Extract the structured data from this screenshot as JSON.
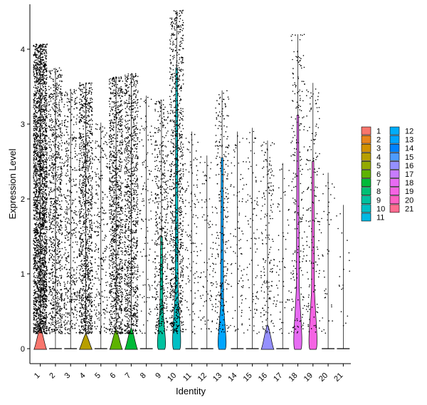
{
  "chart_data": {
    "type": "violin",
    "xlabel": "Identity",
    "ylabel": "Expression Level",
    "categories": [
      "1",
      "2",
      "3",
      "4",
      "5",
      "6",
      "7",
      "8",
      "9",
      "10",
      "11",
      "12",
      "13",
      "14",
      "15",
      "16",
      "17",
      "18",
      "19",
      "20",
      "21"
    ],
    "colors": [
      "#F8766D",
      "#E8851E",
      "#D39200",
      "#B79F00",
      "#93AA00",
      "#5EB300",
      "#00BA38",
      "#00BF74",
      "#00C19F",
      "#00BFC4",
      "#00B9E3",
      "#00ADFA",
      "#00A5FF",
      "#0082FF",
      "#4D9BFF",
      "#9590FF",
      "#C77CFF",
      "#E76BF3",
      "#F564E3",
      "#FF61C3",
      "#FF6C91"
    ],
    "ylim": [
      -0.2,
      4.6
    ],
    "yticks": [
      0,
      1,
      2,
      3,
      4
    ],
    "max_values": [
      4.07,
      3.75,
      3.47,
      3.55,
      3.02,
      3.63,
      3.68,
      3.38,
      3.32,
      4.52,
      2.9,
      2.58,
      3.45,
      2.9,
      2.95,
      2.78,
      2.48,
      4.2,
      3.55,
      2.35,
      1.92
    ],
    "dot_counts": [
      2600,
      900,
      450,
      1100,
      250,
      1100,
      1000,
      120,
      480,
      950,
      120,
      100,
      260,
      90,
      90,
      180,
      60,
      220,
      160,
      40,
      20
    ],
    "violin_peak_height": [
      0.28,
      0,
      0,
      0.2,
      0,
      0.26,
      0.28,
      0,
      0.28,
      0.52,
      0,
      0,
      0.35,
      0,
      0,
      0.32,
      0,
      0.55,
      0.52,
      0,
      0
    ],
    "tall_violin_top": [
      0,
      0,
      0,
      0,
      0,
      0,
      0,
      0,
      1.5,
      3.75,
      0,
      0,
      2.55,
      0,
      0,
      0,
      0,
      3.12,
      2.5,
      0,
      0
    ],
    "legend": {
      "column1": [
        "1",
        "2",
        "3",
        "4",
        "5",
        "6",
        "7",
        "8",
        "9",
        "10",
        "11"
      ],
      "column2": [
        "12",
        "13",
        "14",
        "15",
        "16",
        "17",
        "18",
        "19",
        "20",
        "21"
      ]
    }
  }
}
